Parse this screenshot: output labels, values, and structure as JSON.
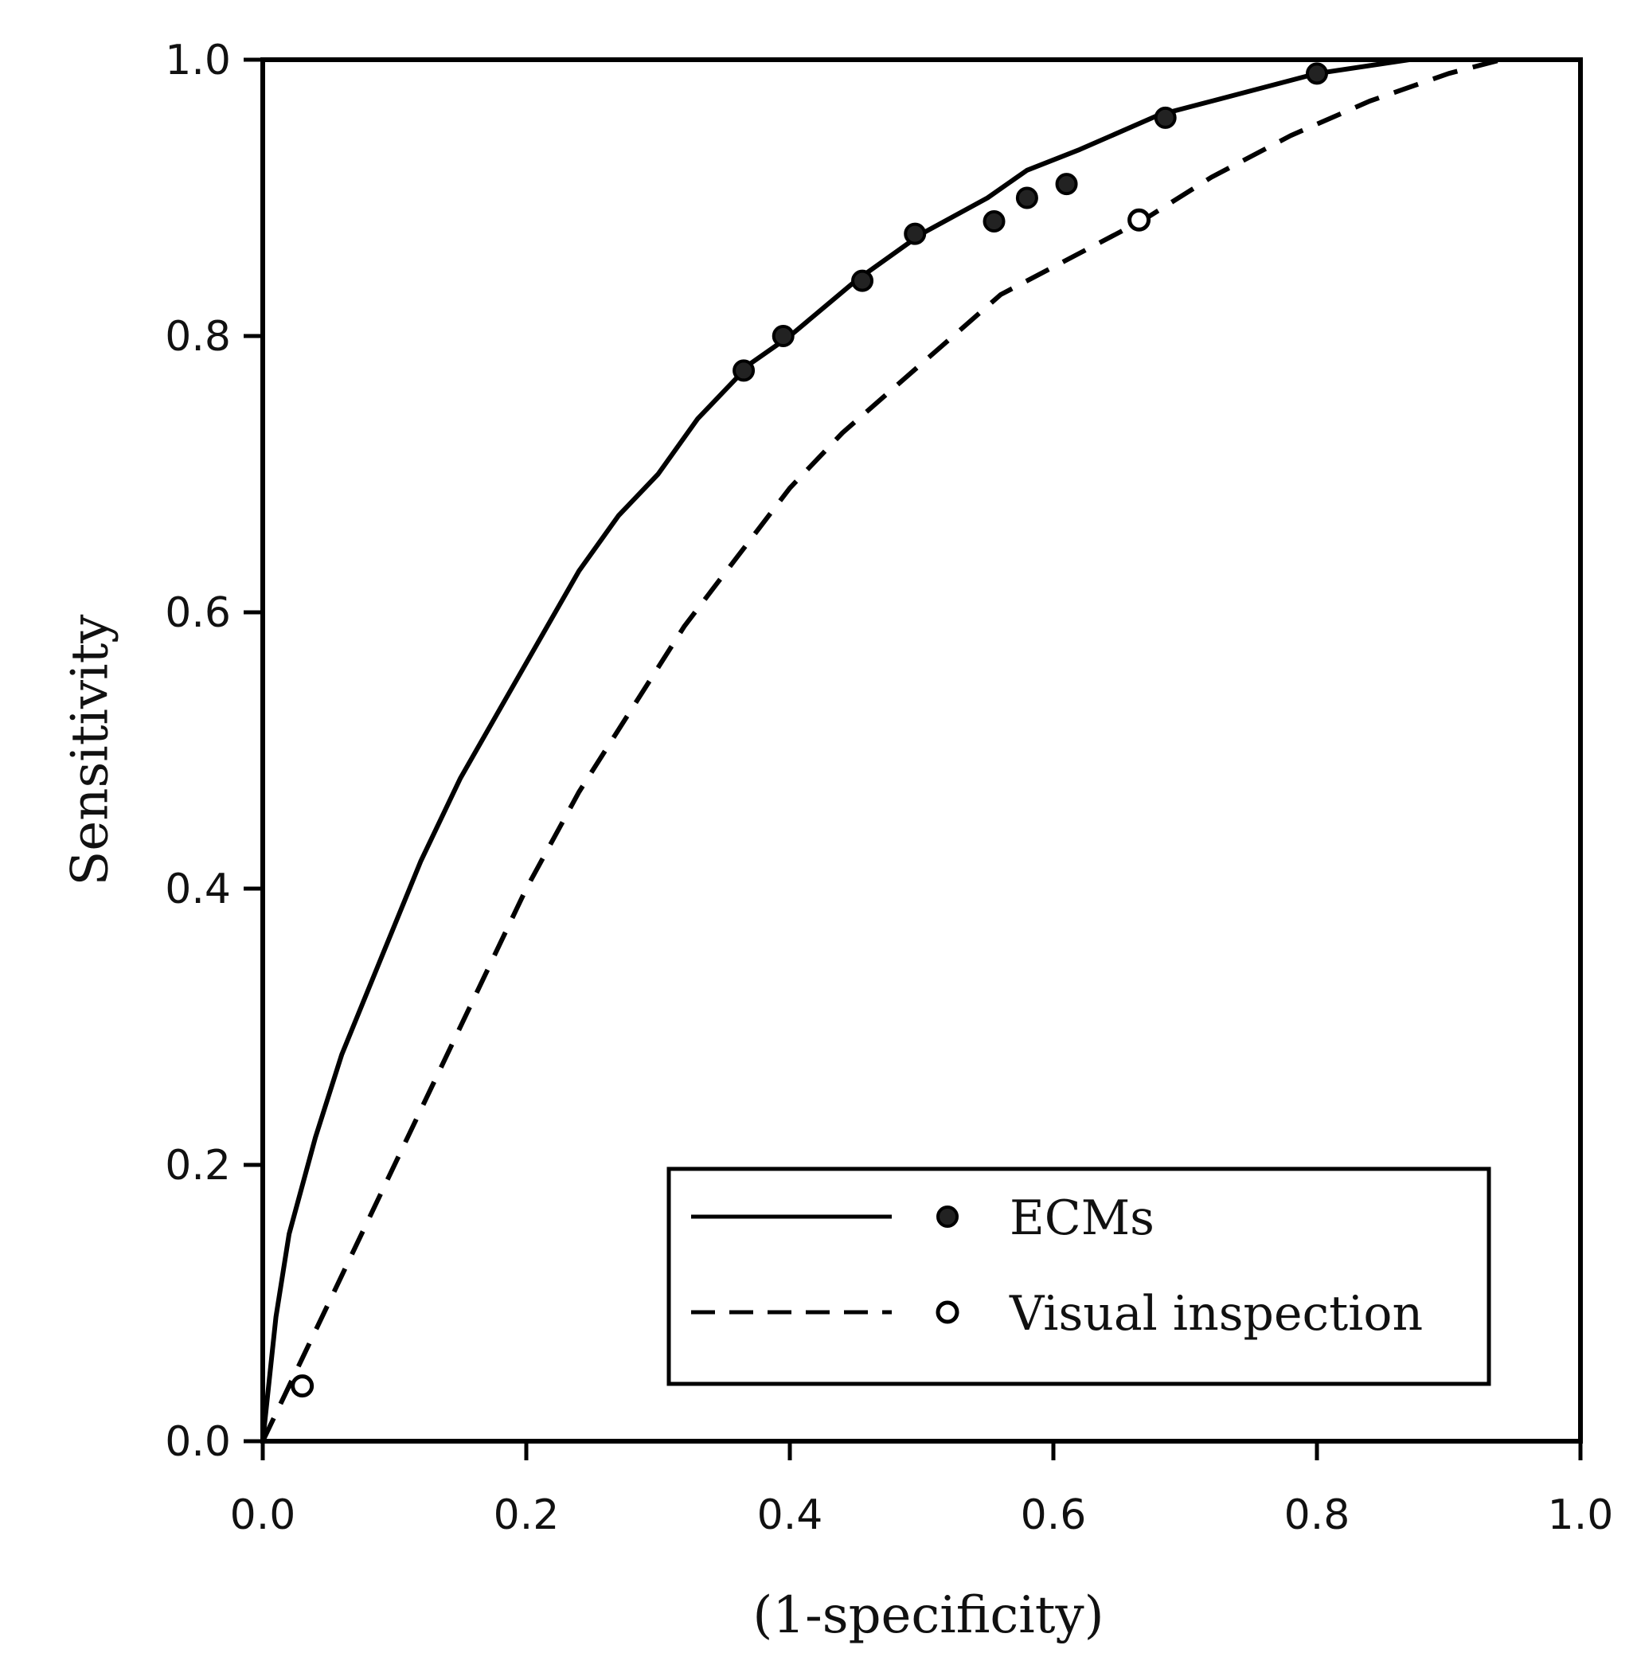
{
  "chart_data": {
    "type": "line",
    "xlabel": "(1-specificity)",
    "ylabel": "Sensitivity",
    "xlim": [
      0,
      1
    ],
    "ylim": [
      0,
      1
    ],
    "xticks": [
      "0.0",
      "0.2",
      "0.4",
      "0.6",
      "0.8",
      "1.0"
    ],
    "yticks": [
      "0.0",
      "0.2",
      "0.4",
      "0.6",
      "0.8",
      "1.0"
    ],
    "grid": false,
    "legend_position": "bottom-right",
    "series": [
      {
        "name": "ECMs",
        "line_style": "solid",
        "marker": "filled-circle",
        "curve": [
          [
            0,
            0
          ],
          [
            0.01,
            0.09
          ],
          [
            0.02,
            0.15
          ],
          [
            0.04,
            0.22
          ],
          [
            0.06,
            0.28
          ],
          [
            0.09,
            0.35
          ],
          [
            0.12,
            0.42
          ],
          [
            0.15,
            0.48
          ],
          [
            0.18,
            0.53
          ],
          [
            0.21,
            0.58
          ],
          [
            0.24,
            0.63
          ],
          [
            0.27,
            0.67
          ],
          [
            0.3,
            0.7
          ],
          [
            0.33,
            0.74
          ],
          [
            0.37,
            0.78
          ],
          [
            0.4,
            0.8
          ],
          [
            0.45,
            0.84
          ],
          [
            0.5,
            0.874
          ],
          [
            0.55,
            0.9
          ],
          [
            0.58,
            0.92
          ],
          [
            0.62,
            0.935
          ],
          [
            0.68,
            0.96
          ],
          [
            0.74,
            0.975
          ],
          [
            0.8,
            0.99
          ],
          [
            0.87,
            1.0
          ],
          [
            0.92,
            1.0
          ],
          [
            1,
            1.0
          ]
        ],
        "points": [
          [
            0.365,
            0.775
          ],
          [
            0.395,
            0.8
          ],
          [
            0.455,
            0.84
          ],
          [
            0.495,
            0.874
          ],
          [
            0.555,
            0.883
          ],
          [
            0.58,
            0.9
          ],
          [
            0.61,
            0.91
          ],
          [
            0.685,
            0.958
          ],
          [
            0.8,
            0.99
          ]
        ]
      },
      {
        "name": "Visual inspection",
        "line_style": "dashed",
        "marker": "open-circle",
        "curve": [
          [
            0,
            0
          ],
          [
            0.02,
            0.04
          ],
          [
            0.05,
            0.1
          ],
          [
            0.08,
            0.16
          ],
          [
            0.12,
            0.24
          ],
          [
            0.16,
            0.32
          ],
          [
            0.2,
            0.4
          ],
          [
            0.24,
            0.47
          ],
          [
            0.28,
            0.53
          ],
          [
            0.32,
            0.59
          ],
          [
            0.36,
            0.64
          ],
          [
            0.4,
            0.69
          ],
          [
            0.44,
            0.73
          ],
          [
            0.5,
            0.78
          ],
          [
            0.56,
            0.83
          ],
          [
            0.62,
            0.86
          ],
          [
            0.67,
            0.885
          ],
          [
            0.72,
            0.915
          ],
          [
            0.78,
            0.945
          ],
          [
            0.84,
            0.97
          ],
          [
            0.9,
            0.99
          ],
          [
            0.94,
            1.0
          ],
          [
            1,
            1.0
          ]
        ],
        "points": [
          [
            0.03,
            0.04
          ],
          [
            0.665,
            0.884
          ]
        ]
      }
    ]
  }
}
